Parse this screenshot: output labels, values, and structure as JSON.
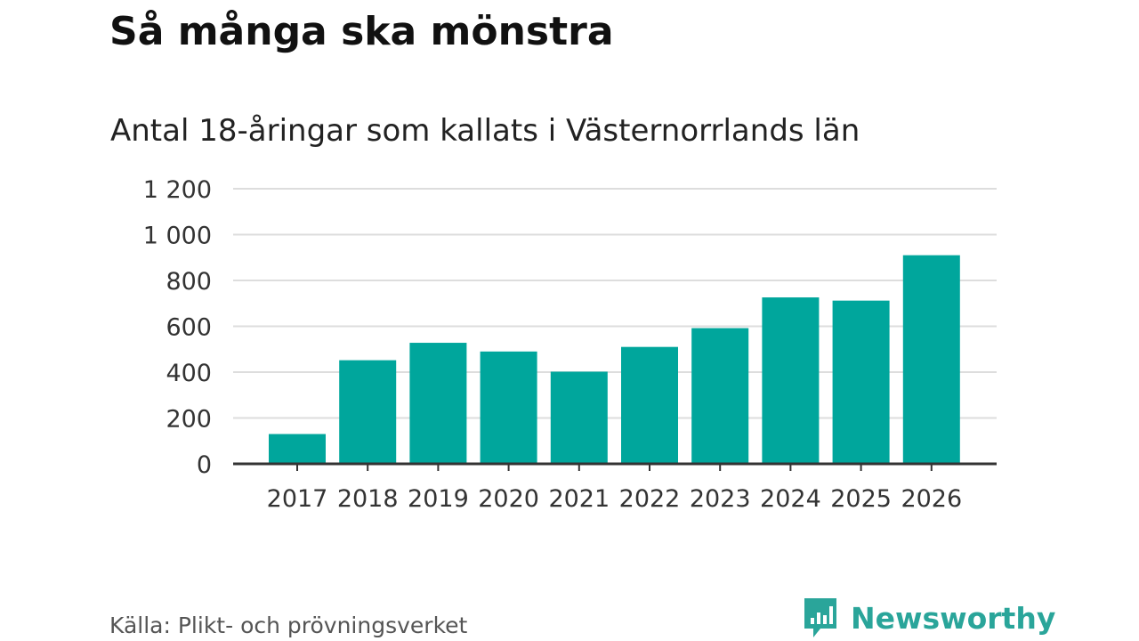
{
  "header": {
    "title": "Så många ska mönstra",
    "subtitle": "Antal 18-åringar som kallats i Västernorrlands län"
  },
  "chart_data": {
    "type": "bar",
    "title": "Så många ska mönstra",
    "subtitle": "Antal 18-åringar som kallats i Västernorrlands län",
    "xlabel": "",
    "ylabel": "",
    "categories": [
      "2017",
      "2018",
      "2019",
      "2020",
      "2021",
      "2022",
      "2023",
      "2024",
      "2025",
      "2026"
    ],
    "values": [
      130,
      452,
      528,
      490,
      402,
      510,
      592,
      726,
      712,
      910
    ],
    "ylim": [
      0,
      1200
    ],
    "yticks": [
      0,
      200,
      400,
      600,
      800,
      1000,
      1200
    ],
    "ytick_labels": [
      "0",
      "200",
      "400",
      "600",
      "800",
      "1 000",
      "1 200"
    ],
    "grid": true,
    "bar_color": "#00a69c"
  },
  "footer": {
    "source": "Källa: Plikt- och prövningsverket",
    "brand": "Newsworthy",
    "brand_icon": "newsworthy-logo-icon",
    "brand_color": "#2aa59a"
  }
}
